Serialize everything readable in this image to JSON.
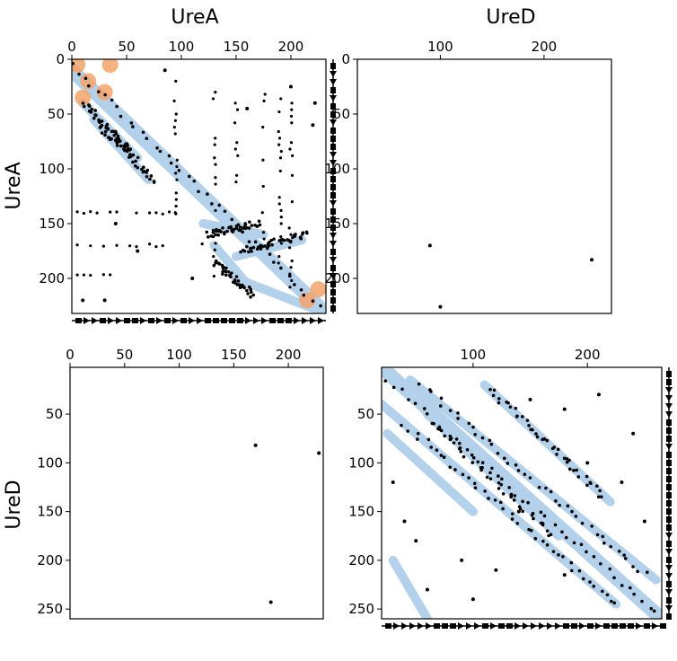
{
  "chart_data": {
    "type": "scatter",
    "column_titles": [
      "UreA",
      "UreD"
    ],
    "row_titles": [
      "UreA",
      "UreD"
    ],
    "legend": "none",
    "grid": false,
    "colors": {
      "contact": "#000000",
      "predicted": "#b3d1ea",
      "highlight": "#f4a36b"
    },
    "panels": [
      {
        "name": "UreA-UreA",
        "xlim": [
          0,
          232
        ],
        "ylim": [
          232,
          0
        ],
        "xticks": [
          0,
          50,
          100,
          150,
          200
        ],
        "xtick_labels": [
          "0",
          "50",
          "100",
          "150",
          "200"
        ],
        "yticks": [
          0,
          50,
          100,
          150,
          200
        ],
        "ytick_labels": [
          "0",
          "50",
          "100",
          "150",
          "200"
        ],
        "x_axis": "top",
        "diagonal_band": true,
        "blue_segments": [
          [
            [
              0,
              10
            ],
            [
              232,
              232
            ]
          ],
          [
            [
              10,
              40
            ],
            [
              60,
              90
            ]
          ],
          [
            [
              20,
              55
            ],
            [
              70,
              110
            ]
          ],
          [
            [
              120,
              150
            ],
            [
              175,
              160
            ]
          ],
          [
            [
              130,
              170
            ],
            [
              160,
              205
            ]
          ],
          [
            [
              150,
              180
            ],
            [
              210,
              165
            ]
          ],
          [
            [
              150,
              200
            ],
            [
              232,
              232
            ]
          ]
        ],
        "orange_blobs": [
          [
            5,
            5
          ],
          [
            15,
            20
          ],
          [
            35,
            5
          ],
          [
            10,
            35
          ],
          [
            30,
            30
          ],
          [
            215,
            220
          ],
          [
            225,
            210
          ]
        ],
        "contact_segments": [
          [
            [
              0,
              5
            ],
            [
              232,
              232
            ]
          ],
          [
            [
              12,
              40
            ],
            [
              55,
              85
            ]
          ],
          [
            [
              25,
              60
            ],
            [
              75,
              110
            ]
          ],
          [
            [
              125,
              160
            ],
            [
              170,
              150
            ]
          ],
          [
            [
              130,
              185
            ],
            [
              165,
              215
            ]
          ],
          [
            [
              155,
              175
            ],
            [
              215,
              160
            ]
          ]
        ],
        "contact_columns": [
          [
            95,
            20,
            140
          ],
          [
            130,
            30,
            200
          ],
          [
            150,
            40,
            120
          ],
          [
            175,
            20,
            170
          ],
          [
            190,
            30,
            190
          ],
          [
            200,
            40,
            210
          ]
        ],
        "contact_rows": [
          [
            140,
            5,
            100
          ],
          [
            170,
            5,
            120
          ],
          [
            198,
            5,
            45
          ]
        ],
        "sparse_points": [
          [
            40,
            150
          ],
          [
            85,
            10
          ],
          [
            160,
            45
          ],
          [
            200,
            25
          ],
          [
            110,
            200
          ],
          [
            60,
            175
          ],
          [
            10,
            220
          ],
          [
            30,
            220
          ],
          [
            220,
            60
          ],
          [
            222,
            40
          ]
        ],
        "side_track_right": true,
        "side_track_bottom": true
      },
      {
        "name": "UreA-UreD",
        "xlim": [
          20,
          265
        ],
        "ylim": [
          232,
          0
        ],
        "xticks": [
          100,
          200
        ],
        "xtick_labels": [
          "100",
          "200"
        ],
        "yticks": [
          0,
          50,
          100,
          150,
          200
        ],
        "ytick_labels": [
          "0",
          "50",
          "100",
          "150",
          "200"
        ],
        "x_axis": "top",
        "points": [
          [
            90,
            170
          ],
          [
            246,
            183
          ],
          [
            100,
            226
          ]
        ]
      },
      {
        "name": "UreD-UreA",
        "xlim": [
          0,
          232
        ],
        "ylim": [
          260,
          2
        ],
        "xticks": [
          0,
          50,
          100,
          150,
          200
        ],
        "xtick_labels": [
          "0",
          "50",
          "100",
          "150",
          "200"
        ],
        "yticks": [
          50,
          100,
          150,
          200,
          250
        ],
        "ytick_labels": [
          "50",
          "100",
          "150",
          "200",
          "250"
        ],
        "x_axis": "top",
        "points": [
          [
            170,
            82
          ],
          [
            228,
            90
          ],
          [
            184,
            243
          ]
        ]
      },
      {
        "name": "UreD-UreD",
        "xlim": [
          20,
          265
        ],
        "ylim": [
          260,
          2
        ],
        "xticks": [
          100,
          200
        ],
        "xtick_labels": [
          "100",
          "200"
        ],
        "yticks": [
          50,
          100,
          150,
          200,
          250
        ],
        "ytick_labels": [
          "50",
          "100",
          "150",
          "200",
          "250"
        ],
        "x_axis": "top",
        "diagonal_band": true,
        "blue_segments": [
          [
            [
              20,
              2
            ],
            [
              265,
              260
            ]
          ],
          [
            [
              20,
              40
            ],
            [
              225,
              245
            ]
          ],
          [
            [
              45,
              15
            ],
            [
              260,
              220
            ]
          ],
          [
            [
              60,
              50
            ],
            [
              175,
              175
            ]
          ],
          [
            [
              110,
              20
            ],
            [
              220,
              140
            ]
          ],
          [
            [
              25,
              70
            ],
            [
              100,
              150
            ]
          ],
          [
            [
              30,
              200
            ],
            [
              60,
              260
            ]
          ]
        ],
        "contact_segments": [
          [
            [
              25,
              15
            ],
            [
              265,
              260
            ]
          ],
          [
            [
              40,
              60
            ],
            [
              225,
              245
            ]
          ],
          [
            [
              55,
              20
            ],
            [
              250,
              215
            ]
          ],
          [
            [
              65,
              60
            ],
            [
              170,
              175
            ]
          ],
          [
            [
              115,
              25
            ],
            [
              215,
              135
            ]
          ]
        ],
        "sparse_points": [
          [
            150,
            35
          ],
          [
            180,
            45
          ],
          [
            210,
            30
          ],
          [
            240,
            70
          ],
          [
            230,
            120
          ],
          [
            250,
            160
          ],
          [
            40,
            160
          ],
          [
            50,
            180
          ],
          [
            90,
            200
          ],
          [
            120,
            210
          ],
          [
            60,
            230
          ],
          [
            100,
            240
          ],
          [
            140,
            150
          ],
          [
            200,
            100
          ],
          [
            180,
            215
          ],
          [
            30,
            120
          ]
        ],
        "side_track_right": true,
        "side_track_bottom": true
      }
    ]
  }
}
